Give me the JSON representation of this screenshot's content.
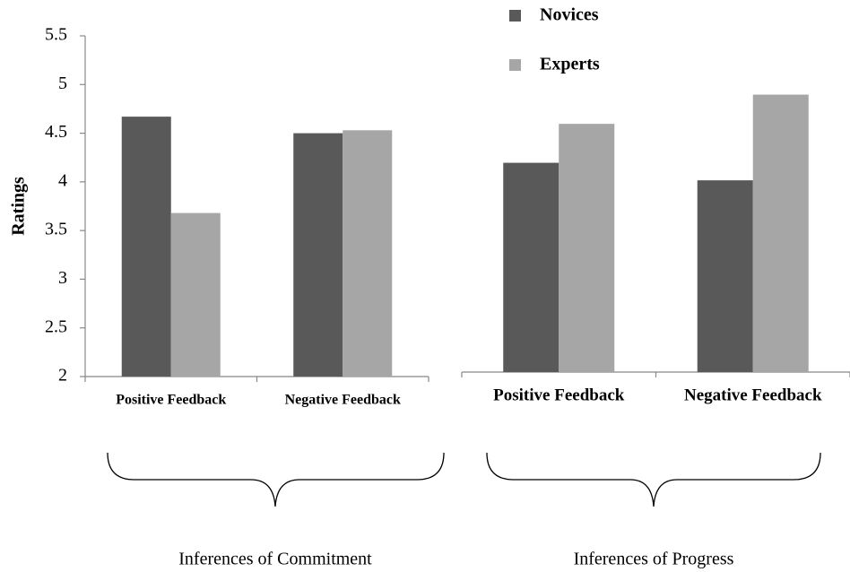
{
  "y_label": "Ratings",
  "chart_data": [
    {
      "type": "bar",
      "group_label": "Inferences of Commitment",
      "categories": [
        "Positive Feedback",
        "Negative Feedback"
      ],
      "series": [
        {
          "name": "Novices",
          "color": "#595959",
          "values": [
            4.67,
            4.5
          ]
        },
        {
          "name": "Experts",
          "color": "#a6a6a6",
          "values": [
            3.68,
            4.53
          ]
        }
      ],
      "ylim": [
        2,
        5.5
      ],
      "yticks": [
        2,
        2.5,
        3,
        3.5,
        4,
        4.5,
        5,
        5.5
      ]
    },
    {
      "type": "bar",
      "group_label": "Inferences of Progress",
      "categories": [
        "Positive Feedback",
        "Negative Feedback"
      ],
      "series": [
        {
          "color": "#595959",
          "values": [
            4.15,
            3.97
          ]
        },
        {
          "color": "#a6a6a6",
          "values": [
            4.55,
            4.85
          ]
        }
      ],
      "ylim": [
        2,
        5.5
      ]
    }
  ]
}
